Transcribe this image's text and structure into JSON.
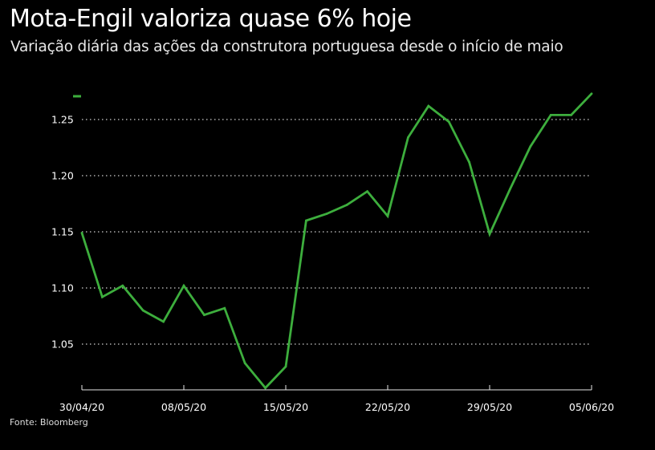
{
  "header": {
    "title": "Mota-Engil valoriza quase 6% hoje",
    "subtitle": "Variação diária das ações da construtora portuguesa desde o início de maio"
  },
  "footer": {
    "source": "Fonte: Bloomberg"
  },
  "colors": {
    "background": "#000000",
    "line": "#3dae3d",
    "grid": "#cfcfcf",
    "text": "#ffffff"
  },
  "chart_data": {
    "type": "line",
    "title": "Mota-Engil valoriza quase 6% hoje",
    "subtitle": "Variação diária das ações da construtora portuguesa desde o início de maio",
    "xlabel": "",
    "ylabel": "",
    "x_start": "30/04/20",
    "x_end": "05/06/20",
    "x_ticks": [
      "30/04/20",
      "08/05/20",
      "15/05/20",
      "22/05/20",
      "29/05/20",
      "05/06/20"
    ],
    "y_ticks": [
      "1.05",
      "1.10",
      "1.15",
      "1.20",
      "1.25"
    ],
    "y_tick_values": [
      1.05,
      1.1,
      1.15,
      1.2,
      1.25
    ],
    "ylim": [
      1.01,
      1.275
    ],
    "grid": "horizontal dotted",
    "legend": "top-left",
    "series": [
      {
        "values": [
          1.149,
          1.092,
          1.102,
          1.08,
          1.07,
          1.102,
          1.076,
          1.082,
          1.033,
          1.011,
          1.03,
          1.16,
          1.166,
          1.174,
          1.186,
          1.164,
          1.234,
          1.262,
          1.248,
          1.212,
          1.148,
          1.188,
          1.226,
          1.254,
          1.254,
          1.273
        ]
      }
    ]
  }
}
